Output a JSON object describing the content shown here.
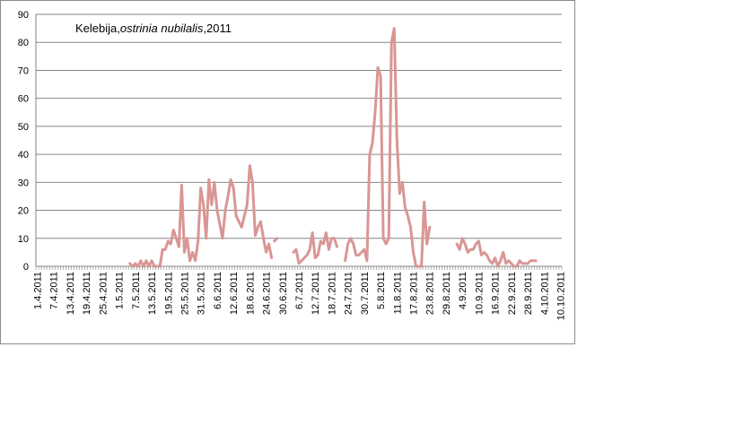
{
  "chart_data": {
    "type": "line",
    "title_parts": [
      "Kelebija,",
      "ostrinia nubilalis",
      ",2011"
    ],
    "xlabel": "",
    "ylabel": "",
    "ylim": [
      0,
      90
    ],
    "yticks": [
      0,
      10,
      20,
      30,
      40,
      50,
      60,
      70,
      80,
      90
    ],
    "grid": "horizontal",
    "legend": "none",
    "x_start": "1.4.2011",
    "x_end": "10.10.2011",
    "xtick_labels": [
      "1.4.2011",
      "7.4.2011",
      "13.4.2011",
      "19.4.2011",
      "25.4.2011",
      "1.5.2011",
      "7.5.2011",
      "13.5.2011",
      "19.5.2011",
      "25.5.2011",
      "31.5.2011",
      "6.6.2011",
      "12.6.2011",
      "18.6.2011",
      "24.6.2011",
      "30.6.2011",
      "6.7.2011",
      "12.7.2011",
      "18.7.2011",
      "24.7.2011",
      "30.7.2011",
      "5.8.2011",
      "11.8.2011",
      "17.8.2011",
      "23.8.2011",
      "29.8.2011",
      "4.9.2011",
      "10.9.2011",
      "16.9.2011",
      "22.9.2011",
      "28.9.2011",
      "4.10.2011",
      "10.10.2011"
    ],
    "series": [
      {
        "color": "#d99694",
        "segments": [
          {
            "x": [
              "5.5.2011",
              "6.5.2011",
              "7.5.2011",
              "8.5.2011",
              "9.5.2011",
              "10.5.2011",
              "11.5.2011",
              "12.5.2011",
              "13.5.2011",
              "14.5.2011",
              "15.5.2011",
              "16.5.2011",
              "17.5.2011",
              "18.5.2011",
              "19.5.2011",
              "20.5.2011",
              "21.5.2011",
              "22.5.2011",
              "23.5.2011",
              "24.5.2011",
              "25.5.2011",
              "26.5.2011",
              "27.5.2011",
              "28.5.2011",
              "29.5.2011",
              "30.5.2011",
              "31.5.2011",
              "1.6.2011",
              "2.6.2011",
              "3.6.2011",
              "4.6.2011",
              "5.6.2011",
              "6.6.2011",
              "7.6.2011",
              "8.6.2011",
              "9.6.2011",
              "10.6.2011",
              "11.6.2011",
              "12.6.2011",
              "13.6.2011",
              "14.6.2011",
              "15.6.2011",
              "16.6.2011",
              "17.6.2011",
              "18.6.2011",
              "19.6.2011",
              "20.6.2011",
              "21.6.2011",
              "22.6.2011",
              "23.6.2011",
              "24.6.2011",
              "25.6.2011",
              "26.6.2011"
            ],
            "y": [
              1,
              0,
              1,
              0,
              2,
              0,
              2,
              0,
              2,
              0,
              0,
              0,
              6,
              6,
              9,
              8,
              13,
              10,
              7,
              29,
              5,
              10,
              2,
              5,
              2,
              9,
              28,
              22,
              10,
              31,
              22,
              30,
              20,
              15,
              10,
              20,
              25,
              31,
              28,
              18,
              16,
              14,
              18,
              22,
              36,
              30,
              11,
              14,
              16,
              10,
              5,
              8,
              3
            ]
          },
          {
            "x": [
              "27.6.2011",
              "28.6.2011"
            ],
            "y": [
              9,
              10
            ]
          },
          {
            "x": [
              "4.7.2011",
              "5.7.2011",
              "6.7.2011",
              "7.7.2011",
              "8.7.2011",
              "9.7.2011",
              "10.7.2011",
              "11.7.2011",
              "12.7.2011",
              "13.7.2011",
              "14.7.2011",
              "15.7.2011",
              "16.7.2011",
              "17.7.2011",
              "18.7.2011",
              "19.7.2011",
              "20.7.2011"
            ],
            "y": [
              5,
              6,
              1,
              2,
              3,
              4,
              6,
              12,
              3,
              4,
              9,
              8,
              12,
              6,
              10,
              10,
              7
            ]
          },
          {
            "x": [
              "23.7.2011",
              "24.7.2011",
              "25.7.2011",
              "26.7.2011",
              "27.7.2011",
              "28.7.2011",
              "29.7.2011",
              "30.7.2011",
              "31.7.2011",
              "1.8.2011",
              "2.8.2011",
              "3.8.2011",
              "4.8.2011",
              "5.8.2011",
              "6.8.2011",
              "7.8.2011",
              "8.8.2011",
              "9.8.2011",
              "10.8.2011",
              "11.8.2011",
              "12.8.2011",
              "13.8.2011",
              "14.8.2011",
              "15.8.2011",
              "16.8.2011",
              "17.8.2011",
              "18.8.2011",
              "19.8.2011",
              "20.8.2011",
              "21.8.2011",
              "22.8.2011",
              "23.8.2011"
            ],
            "y": [
              2,
              8,
              10,
              8,
              4,
              4,
              5,
              6,
              2,
              40,
              44,
              55,
              71,
              68,
              10,
              8,
              10,
              80,
              85,
              45,
              26,
              30,
              21,
              18,
              14,
              5,
              0,
              0,
              0,
              23,
              8,
              14
            ]
          },
          {
            "x": [
              "2.9.2011",
              "3.9.2011",
              "4.9.2011",
              "5.9.2011",
              "6.9.2011",
              "7.9.2011",
              "8.9.2011",
              "9.9.2011",
              "10.9.2011",
              "11.9.2011",
              "12.9.2011",
              "13.9.2011",
              "14.9.2011",
              "15.9.2011",
              "16.9.2011",
              "17.9.2011",
              "18.9.2011",
              "19.9.2011",
              "20.9.2011",
              "21.9.2011",
              "22.9.2011",
              "23.9.2011",
              "24.9.2011",
              "25.9.2011",
              "26.9.2011",
              "27.9.2011",
              "28.9.2011",
              "29.9.2011",
              "30.9.2011",
              "1.10.2011"
            ],
            "y": [
              8,
              6,
              10,
              8,
              5,
              6,
              6,
              8,
              9,
              4,
              5,
              4,
              2,
              1,
              3,
              0,
              2,
              5,
              1,
              2,
              1,
              0,
              0,
              2,
              1,
              1,
              1,
              2,
              2,
              2
            ]
          }
        ]
      }
    ]
  }
}
